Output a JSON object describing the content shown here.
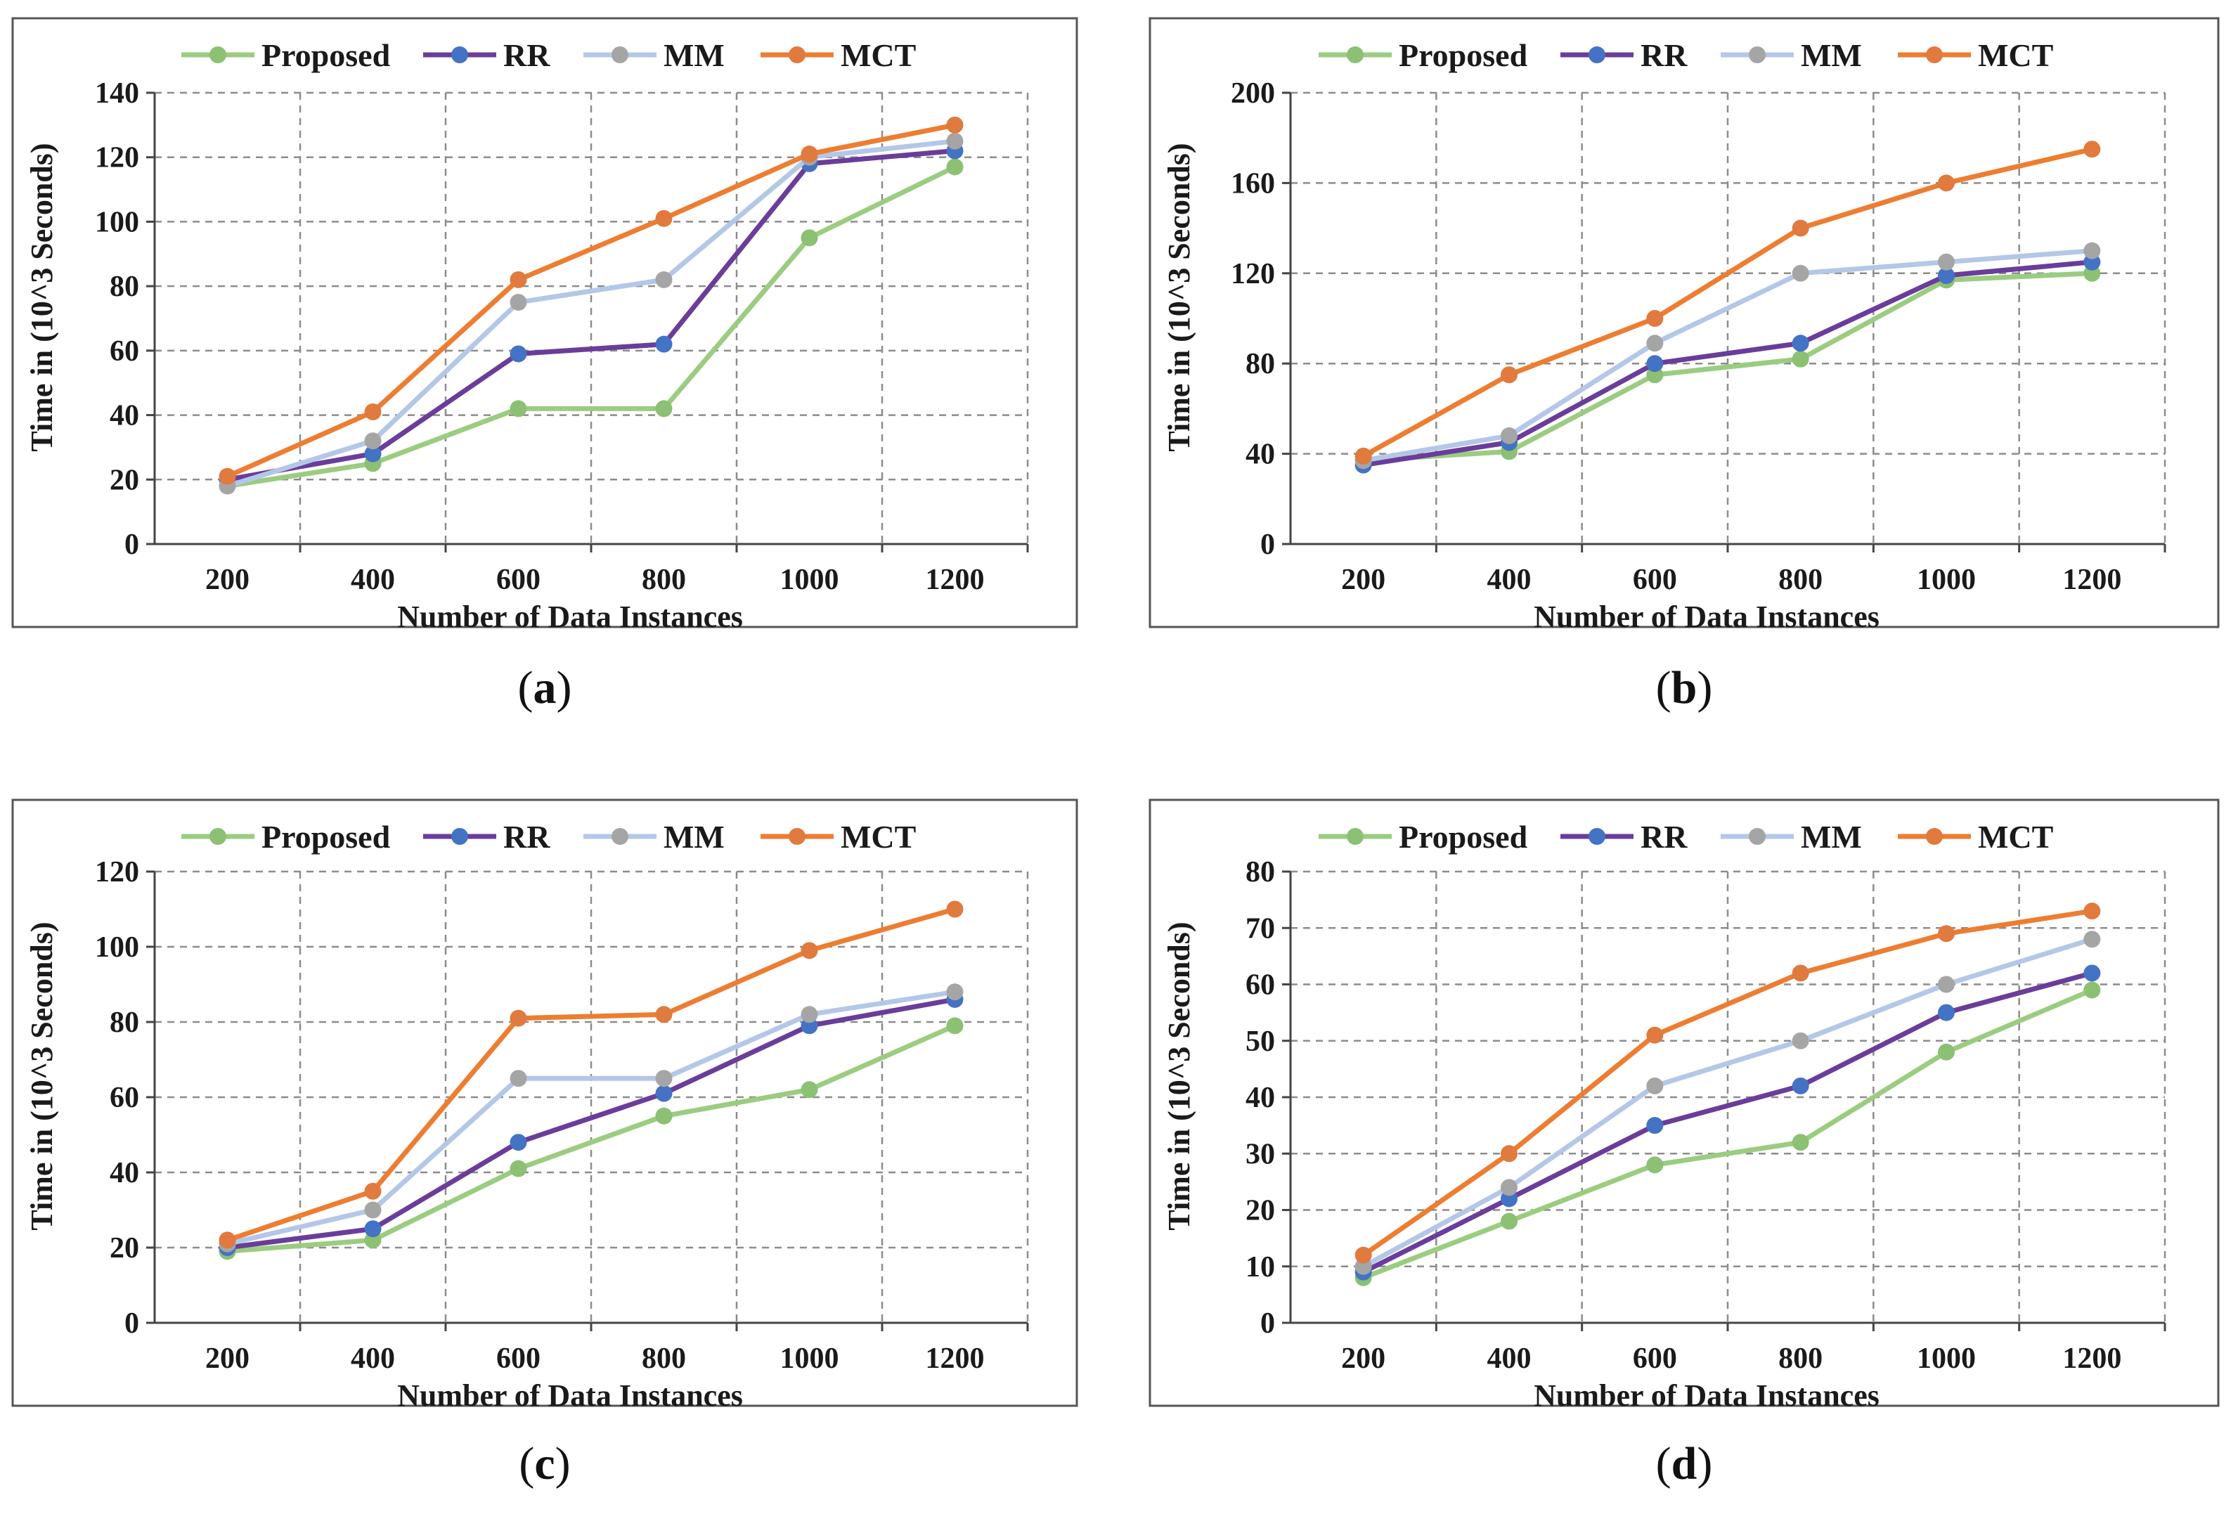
{
  "colors": {
    "Proposed": {
      "line": "#9bcc80",
      "marker": "#8cc073"
    },
    "RR": {
      "line": "#6a3d9a",
      "marker": "#4472c4"
    },
    "MM": {
      "line": "#b4c7e7",
      "marker": "#a5a5a5"
    },
    "MCT": {
      "line": "#ed7d31",
      "marker": "#e07a3e"
    }
  },
  "chart_data": [
    {
      "type": "line",
      "caption": "a",
      "categories": [
        "200",
        "400",
        "600",
        "800",
        "1000",
        "1200"
      ],
      "xlabel": "Number of Data Instances",
      "ylabel": "Time in (10^3 Seconds)",
      "ylim": [
        0,
        140
      ],
      "yticks": [
        "0",
        "20",
        "40",
        "60",
        "80",
        "100",
        "120",
        "140"
      ],
      "grid": true,
      "legend": "top",
      "series": [
        {
          "name": "Proposed",
          "values": [
            18,
            25,
            42,
            42,
            95,
            117
          ]
        },
        {
          "name": "RR",
          "values": [
            20,
            28,
            59,
            62,
            118,
            122
          ]
        },
        {
          "name": "MM",
          "values": [
            18,
            32,
            75,
            82,
            120,
            125
          ]
        },
        {
          "name": "MCT",
          "values": [
            21,
            41,
            82,
            101,
            121,
            130
          ]
        }
      ]
    },
    {
      "type": "line",
      "caption": "b",
      "categories": [
        "200",
        "400",
        "600",
        "800",
        "1000",
        "1200"
      ],
      "xlabel": "Number of Data Instances",
      "ylabel": "Time in (10^3 Seconds)",
      "ylim": [
        0,
        200
      ],
      "yticks": [
        "0",
        "40",
        "80",
        "120",
        "160",
        "200"
      ],
      "grid": true,
      "legend": "top",
      "series": [
        {
          "name": "Proposed",
          "values": [
            37,
            41,
            75,
            82,
            117,
            120
          ]
        },
        {
          "name": "RR",
          "values": [
            35,
            45,
            80,
            89,
            119,
            125
          ]
        },
        {
          "name": "MM",
          "values": [
            37,
            48,
            89,
            120,
            125,
            130
          ]
        },
        {
          "name": "MCT",
          "values": [
            39,
            75,
            100,
            140,
            160,
            175
          ]
        }
      ]
    },
    {
      "type": "line",
      "caption": "c",
      "categories": [
        "200",
        "400",
        "600",
        "800",
        "1000",
        "1200"
      ],
      "xlabel": "Number of Data Instances",
      "ylabel": "Time in (10^3 Seconds)",
      "ylim": [
        0,
        120
      ],
      "yticks": [
        "0",
        "20",
        "40",
        "60",
        "80",
        "100",
        "120"
      ],
      "grid": true,
      "legend": "top",
      "series": [
        {
          "name": "Proposed",
          "values": [
            19,
            22,
            41,
            55,
            62,
            79
          ]
        },
        {
          "name": "RR",
          "values": [
            20,
            25,
            48,
            61,
            79,
            86
          ]
        },
        {
          "name": "MM",
          "values": [
            21,
            30,
            65,
            65,
            82,
            88
          ]
        },
        {
          "name": "MCT",
          "values": [
            22,
            35,
            81,
            82,
            99,
            110
          ]
        }
      ]
    },
    {
      "type": "line",
      "caption": "d",
      "categories": [
        "200",
        "400",
        "600",
        "800",
        "1000",
        "1200"
      ],
      "xlabel": "Number of Data Instances",
      "ylabel": "Time in (10^3 Seconds)",
      "ylim": [
        0,
        80
      ],
      "yticks": [
        "0",
        "10",
        "20",
        "30",
        "40",
        "50",
        "60",
        "70",
        "80"
      ],
      "grid": true,
      "legend": "top",
      "series": [
        {
          "name": "Proposed",
          "values": [
            8,
            18,
            28,
            32,
            48,
            59
          ]
        },
        {
          "name": "RR",
          "values": [
            9,
            22,
            35,
            42,
            55,
            62
          ]
        },
        {
          "name": "MM",
          "values": [
            10,
            24,
            42,
            50,
            60,
            68
          ]
        },
        {
          "name": "MCT",
          "values": [
            12,
            30,
            51,
            62,
            69,
            73
          ]
        }
      ]
    }
  ]
}
